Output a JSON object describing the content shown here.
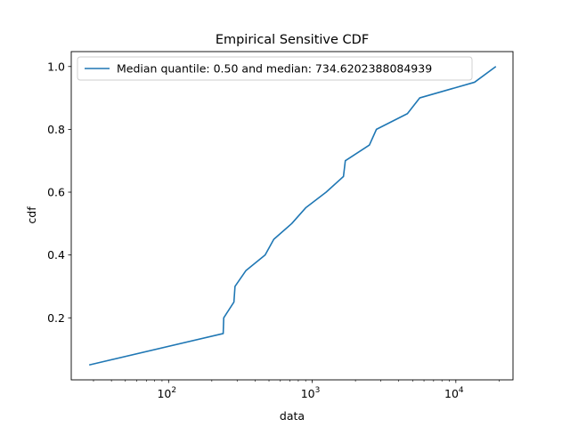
{
  "chart_data": {
    "type": "line",
    "title": "Empirical Sensitive CDF",
    "xlabel": "data",
    "ylabel": "cdf",
    "xscale": "log",
    "xlim": [
      21.0,
      25000
    ],
    "ylim": [
      0.0025,
      1.0475
    ],
    "grid": false,
    "legend_placement": "top-left",
    "x_ticks": [
      {
        "value": 100,
        "base": "10",
        "exp": "2"
      },
      {
        "value": 1000,
        "base": "10",
        "exp": "3"
      },
      {
        "value": 10000,
        "base": "10",
        "exp": "4"
      }
    ],
    "y_ticks": [
      {
        "value": 0.2,
        "label": "0.2"
      },
      {
        "value": 0.4,
        "label": "0.4"
      },
      {
        "value": 0.6,
        "label": "0.6"
      },
      {
        "value": 0.8,
        "label": "0.8"
      },
      {
        "value": 1.0,
        "label": "1.0"
      }
    ],
    "series": [
      {
        "name": "Median quantile: 0.50 and median: 734.6202388084939",
        "color": "#1f77b4",
        "x": [
          28,
          240,
          242,
          285,
          290,
          345,
          470,
          540,
          720,
          900,
          1250,
          1650,
          1700,
          2500,
          2800,
          4600,
          5600,
          13500,
          19000
        ],
        "y": [
          0.05,
          0.15,
          0.2,
          0.25,
          0.3,
          0.35,
          0.4,
          0.45,
          0.5,
          0.55,
          0.6,
          0.65,
          0.7,
          0.75,
          0.8,
          0.85,
          0.9,
          0.95,
          1.0
        ]
      }
    ]
  }
}
